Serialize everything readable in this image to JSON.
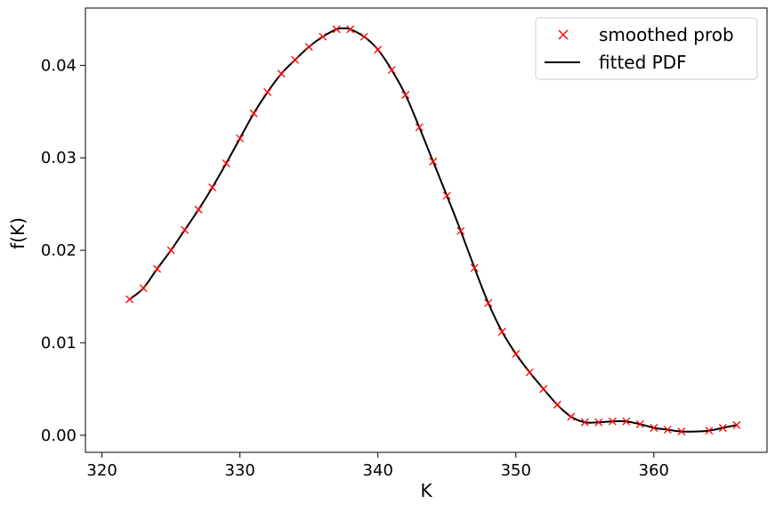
{
  "chart_data": {
    "type": "line",
    "title": "",
    "xlabel": "K",
    "ylabel": "f(K)",
    "xlim": [
      318.8,
      368.2
    ],
    "ylim": [
      -0.00185,
      0.0462
    ],
    "xticks": [
      320,
      330,
      340,
      350,
      360
    ],
    "yticks": [
      0.0,
      0.01,
      0.02,
      0.03,
      0.04
    ],
    "xtick_labels": [
      "320",
      "330",
      "340",
      "350",
      "360"
    ],
    "ytick_labels": [
      "0.00",
      "0.01",
      "0.02",
      "0.03",
      "0.04"
    ],
    "grid": false,
    "legend_position": "top-right",
    "series": [
      {
        "name": "smoothed prob",
        "style": "markers",
        "marker": "x",
        "color": "#ff0000",
        "x": [
          322,
          323,
          324,
          325,
          326,
          327,
          328,
          329,
          330,
          331,
          332,
          333,
          334,
          335,
          336,
          337,
          338,
          339,
          340,
          341,
          342,
          343,
          344,
          345,
          346,
          347,
          348,
          349,
          350,
          351,
          352,
          353,
          354,
          355,
          356,
          357,
          358,
          359,
          360,
          361,
          362,
          364,
          365,
          366
        ],
        "y": [
          0.0147,
          0.0159,
          0.018,
          0.02,
          0.0222,
          0.0244,
          0.0268,
          0.0294,
          0.0321,
          0.0348,
          0.0371,
          0.0391,
          0.0406,
          0.042,
          0.0431,
          0.0439,
          0.0439,
          0.0431,
          0.0417,
          0.0395,
          0.0368,
          0.0333,
          0.0296,
          0.0259,
          0.0221,
          0.0181,
          0.0143,
          0.0112,
          0.0088,
          0.0068,
          0.005,
          0.0033,
          0.002,
          0.0014,
          0.0014,
          0.0015,
          0.0015,
          0.0012,
          0.0008,
          0.0006,
          0.0004,
          0.0005,
          0.0008,
          0.0011
        ]
      },
      {
        "name": "fitted PDF",
        "style": "line",
        "color": "#000000",
        "x": [
          322,
          323,
          324,
          325,
          326,
          327,
          328,
          329,
          330,
          331,
          332,
          333,
          334,
          335,
          336,
          337,
          337.5,
          338,
          339,
          340,
          341,
          342,
          343,
          344,
          345,
          346,
          347,
          348,
          349,
          350,
          351,
          352,
          353,
          354,
          355,
          356,
          357,
          358,
          359,
          360,
          361,
          362,
          363,
          364,
          365,
          366
        ],
        "y": [
          0.0147,
          0.0159,
          0.018,
          0.02,
          0.0222,
          0.0244,
          0.0268,
          0.0294,
          0.0321,
          0.0348,
          0.0371,
          0.0391,
          0.0406,
          0.042,
          0.0431,
          0.0439,
          0.044,
          0.0439,
          0.0431,
          0.0417,
          0.0395,
          0.0368,
          0.0333,
          0.0296,
          0.0259,
          0.0221,
          0.0181,
          0.0143,
          0.0112,
          0.0088,
          0.0068,
          0.005,
          0.0033,
          0.002,
          0.0014,
          0.0014,
          0.0015,
          0.0015,
          0.0012,
          0.0008,
          0.0006,
          0.0004,
          0.0004,
          0.0005,
          0.0008,
          0.0011
        ]
      }
    ]
  }
}
